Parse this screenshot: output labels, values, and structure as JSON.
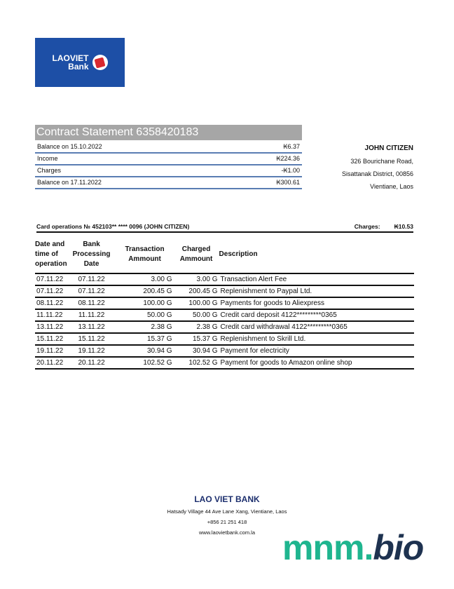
{
  "logo": {
    "line1": "LAOVIET",
    "line2": "Bank"
  },
  "title": "Contract Statement 6358420183",
  "summary": [
    {
      "label": "Balance on 15.10.2022",
      "value": "₭6.37"
    },
    {
      "label": "Income",
      "value": "₭224.36"
    },
    {
      "label": "Charges",
      "value": "-₭1.00"
    },
    {
      "label": "Balance on 17.11.2022",
      "value": "₭300.61"
    }
  ],
  "customer": {
    "name": "JOHN CITIZEN",
    "address1": "326 Bourichane Road,",
    "address2": "Sisattanak District, 00856",
    "address3": "Vientiane, Laos"
  },
  "card_ops": {
    "label": "Card operations № 452103** **** 0096  (JOHN CITIZEN)",
    "charges_label": "Charges:",
    "charges_value": "₭10.53"
  },
  "table": {
    "headers": [
      "Date and time of operation",
      "Bank Processing Date",
      "Transaction Ammount",
      "Charged Ammount",
      "Description"
    ],
    "rows": [
      [
        "07.11.22",
        "07.11.22",
        "3.00 G",
        "3.00 G",
        "Transaction Alert Fee"
      ],
      [
        "07.11.22",
        "07.11.22",
        "200.45 G",
        "200.45 G",
        "Replenishment to Paypal Ltd."
      ],
      [
        "08.11.22",
        "08.11.22",
        "100.00 G",
        "100.00 G",
        "Payments for goods to Aliexpress"
      ],
      [
        "11.11.22",
        "11.11.22",
        "50.00 G",
        "50.00 G",
        "Credit card deposit 4122*********0365"
      ],
      [
        "13.11.22",
        "13.11.22",
        "2.38 G",
        "2.38 G",
        "Credit card withdrawal 4122*********0365"
      ],
      [
        "15.11.22",
        "15.11.22",
        "15.37 G",
        "15.37 G",
        "Replenishment to Skrill Ltd."
      ],
      [
        "19.11.22",
        "19.11.22",
        "30.94 G",
        "30.94 G",
        "Payment for electricity"
      ],
      [
        "20.11.22",
        "20.11.22",
        "102.52 G",
        "102.52 G",
        "Payment for goods to Amazon online shop"
      ]
    ]
  },
  "footer": {
    "bank": "LAO VIET BANK",
    "address": "Hatsady Village 44 Ave Lane Xang, Vientiane, Laos",
    "phone": "+856 21 251 418",
    "website": "www.laovietbank.com.la"
  },
  "watermark": {
    "part1": "mnm.",
    "part2": "bio"
  }
}
